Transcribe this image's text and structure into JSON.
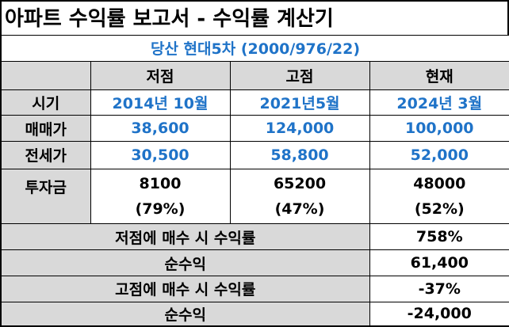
{
  "title": "아파트 수익률 보고서 - 수익률 계산기",
  "subtitle": "당산 현대5차 (2000/976/22)",
  "columns": [
    "저점",
    "고점",
    "현재"
  ],
  "rows": [
    {
      "label": "시기",
      "values": [
        "2014년 10월",
        "2021년5월",
        "2024년 3월"
      ]
    },
    {
      "label": "매매가",
      "values": [
        "38,600",
        "124,000",
        "100,000"
      ]
    },
    {
      "label": "전세가",
      "values": [
        "30,500",
        "58,800",
        "52,000"
      ]
    }
  ],
  "investment": {
    "label": "투자금",
    "values": [
      {
        "amount": "8100",
        "pct": "(79%)"
      },
      {
        "amount": "65200",
        "pct": "(47%)"
      },
      {
        "amount": "48000",
        "pct": "(52%)"
      }
    ]
  },
  "summary": [
    {
      "label": "저점에 매수 시 수익률",
      "value": "758%"
    },
    {
      "label": "순수익",
      "value": "61,400"
    },
    {
      "label": "고점에 매수 시 수익률",
      "value": "-37%"
    },
    {
      "label": "순수익",
      "value": "-24,000"
    }
  ],
  "colors": {
    "accent_blue": "#1f73c8",
    "header_gray": "#d9d9d9"
  }
}
